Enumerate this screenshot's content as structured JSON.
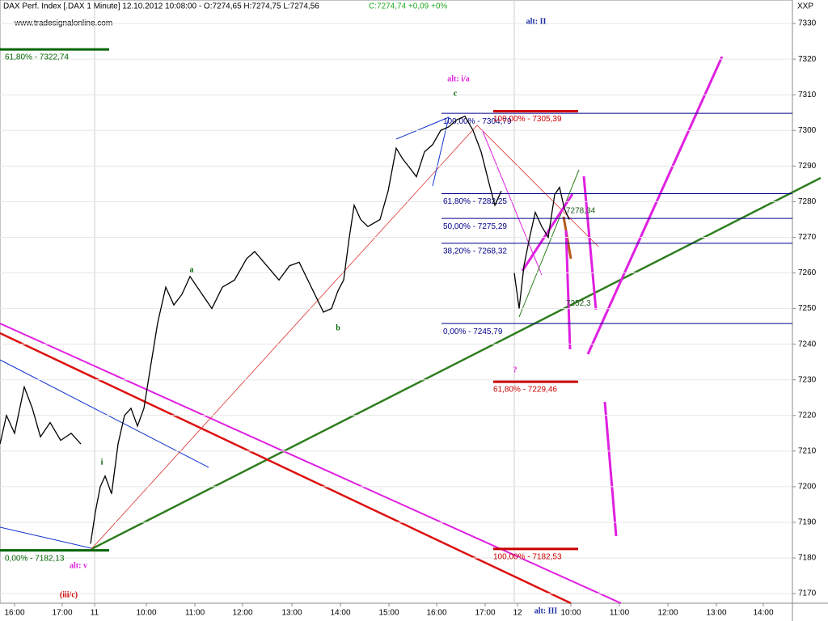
{
  "chart_data": {
    "type": "line",
    "title": "DAX Perf. Index [.DAX 1 Minute] 12.10.2012 10:08:00 - O:7274,65 H:7274,75 L:7274,56",
    "title_change": "C:7274,74 +0,09 +0%",
    "source": "www.tradesignalonline.com",
    "y_axis_label": "XXP",
    "color": "#000000",
    "x": [
      0,
      8,
      18,
      30,
      40,
      50,
      62,
      75,
      88,
      100,
      106,
      112,
      118,
      124,
      130,
      138,
      146,
      154,
      162,
      170,
      178,
      185,
      195,
      205,
      215,
      225,
      235,
      250,
      262,
      275,
      290,
      305,
      315,
      330,
      345,
      358,
      370,
      385,
      400,
      410,
      418,
      425,
      432,
      438,
      446,
      455,
      470,
      480,
      490,
      498,
      505,
      515,
      525,
      535,
      545,
      555,
      565,
      575,
      585,
      595,
      605,
      612,
      620,
      628,
      636,
      642,
      648,
      655,
      662,
      670,
      678,
      686,
      692,
      698,
      704
    ],
    "values": [
      7212,
      7220,
      7215,
      7228,
      7222,
      7214,
      7218,
      7213,
      7215,
      7212,
      null,
      7184,
      7193,
      7200,
      7203,
      7198,
      7212,
      7220,
      7222,
      7217,
      7222,
      7232,
      7246,
      7256,
      7251,
      7254,
      7259,
      7254,
      7250,
      7256,
      7258,
      7264,
      7266,
      7262,
      7258,
      7262,
      7263,
      7256,
      7249,
      7250,
      7255,
      7258,
      7270,
      7279,
      7275,
      7273,
      7275,
      7283,
      7295,
      7292,
      7290,
      7287,
      7294,
      7296,
      7300,
      7301,
      7303,
      7304,
      7300,
      7294,
      7285,
      7279,
      7283,
      null,
      7260,
      7250,
      7262,
      7270,
      7277,
      7273,
      7270,
      7282,
      7284,
      7278,
      7275
    ],
    "xlim": [
      0,
      980
    ],
    "ylim": [
      7167.3,
      7336.6
    ],
    "yticks": [
      7170,
      7180,
      7190,
      7200,
      7210,
      7220,
      7230,
      7240,
      7250,
      7260,
      7270,
      7280,
      7290,
      7300,
      7310,
      7320,
      7330
    ],
    "xticks": [
      {
        "value": 18,
        "label": "16:00"
      },
      {
        "value": 77,
        "label": "17:00"
      },
      {
        "value": 117,
        "label": "11"
      },
      {
        "value": 181,
        "label": "10:00"
      },
      {
        "value": 241,
        "label": "11:00"
      },
      {
        "value": 300,
        "label": "12:00"
      },
      {
        "value": 361,
        "label": "13:00"
      },
      {
        "value": 421,
        "label": "14:00"
      },
      {
        "value": 481,
        "label": "15:00"
      },
      {
        "value": 540,
        "label": "16:00"
      },
      {
        "value": 600,
        "label": "17:00"
      },
      {
        "value": 640,
        "label": "12"
      },
      {
        "value": 706,
        "label": "10:00"
      },
      {
        "value": 766,
        "label": "11:00"
      },
      {
        "value": 826,
        "label": "12:00"
      },
      {
        "value": 886,
        "label": "13:00"
      },
      {
        "value": 944,
        "label": "14:00"
      }
    ],
    "grid": true,
    "fib_levels": [
      {
        "value": 7322.74,
        "label": "61,80% - 7322,74",
        "color": "#006400"
      },
      {
        "value": 7182.13,
        "label": "0,00% - 7182,13",
        "color": "#006400"
      },
      {
        "value": 7304.79,
        "label": "100,00% - 7304,79",
        "color": "#00008b"
      },
      {
        "value": 7282.25,
        "label": "61,80% - 7282,25",
        "color": "#00008b"
      },
      {
        "value": 7275.29,
        "label": "50,00% - 7275,29",
        "color": "#00008b"
      },
      {
        "value": 7268.32,
        "label": "38,20% - 7268,32",
        "color": "#00008b"
      },
      {
        "value": 7245.79,
        "label": "0,00% - 7245,79",
        "color": "#00008b"
      },
      {
        "value": 7305.39,
        "label": "100,00% - 7305,39",
        "color": "#cc0000"
      },
      {
        "value": 7229.46,
        "label": "61,80% - 7229,46",
        "color": "#cc0000"
      },
      {
        "value": 7182.53,
        "label": "100,00% - 7182,53",
        "color": "#cc0000"
      }
    ],
    "price_labels": [
      {
        "value": 7278.34,
        "label": "7278,34"
      },
      {
        "value": 7252.3,
        "label": "7252,3"
      }
    ],
    "annotations": [
      {
        "text": "alt: II",
        "color": "#1a2aa0"
      },
      {
        "text": "alt: i/a",
        "color": "#e020e0"
      },
      {
        "text": "c",
        "color": "#006400"
      },
      {
        "text": "a",
        "color": "#006400"
      },
      {
        "text": "b",
        "color": "#006400"
      },
      {
        "text": "i",
        "color": "#006400"
      },
      {
        "text": "alt: v",
        "color": "#e020e0"
      },
      {
        "text": "(iii/c)",
        "color": "#cc0000"
      },
      {
        "text": "?",
        "color": "#e020e0"
      },
      {
        "text": "alt: III",
        "color": "#1a2aa0"
      }
    ]
  }
}
